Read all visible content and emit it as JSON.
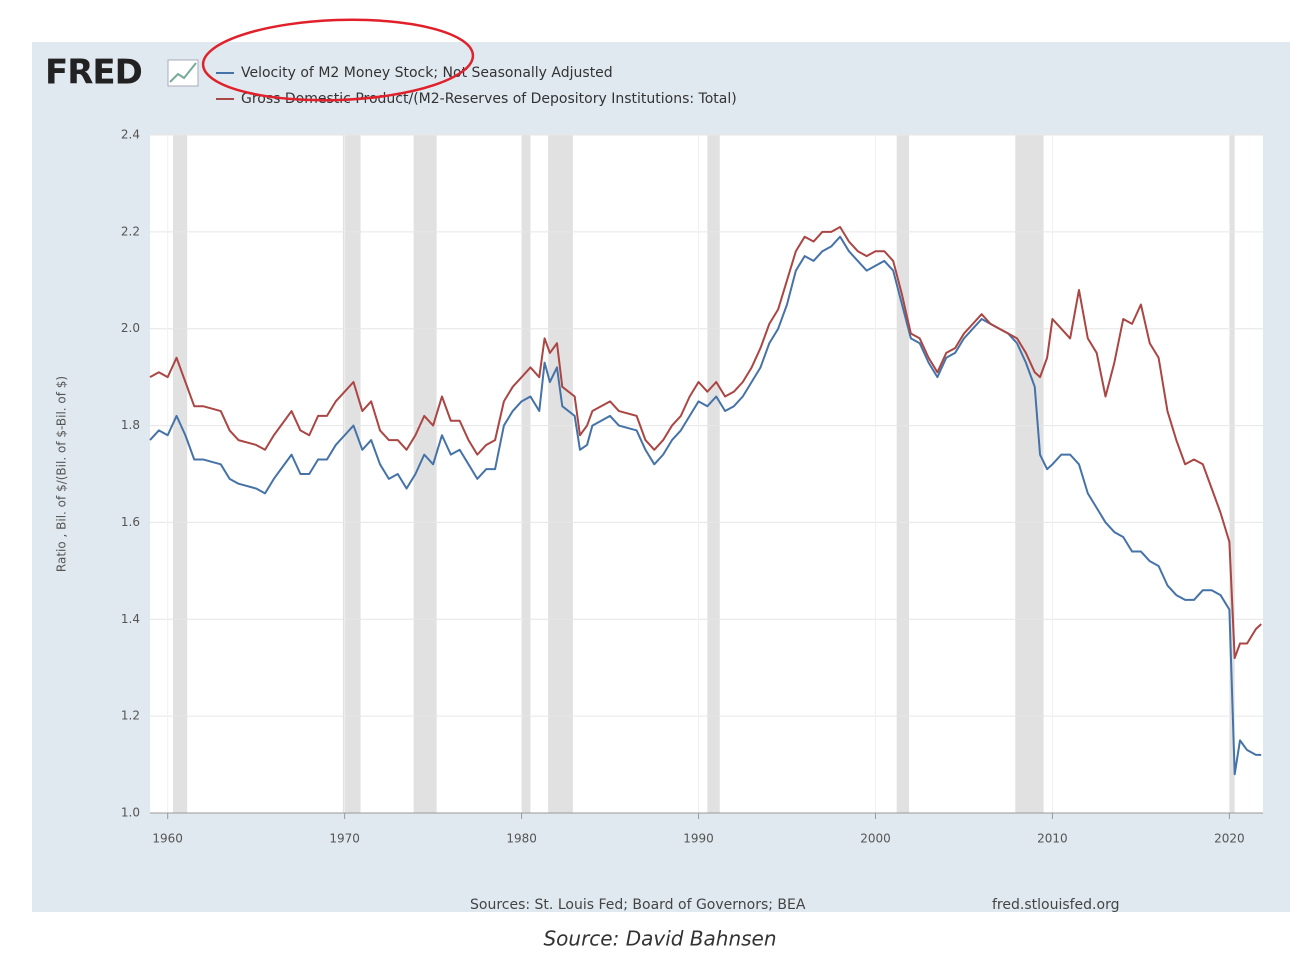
{
  "chart_data": {
    "type": "line",
    "logo": "FRED",
    "ylabel": "Ratio , Bil. of $/(Bil. of $-Bil. of $)",
    "source": "Sources: St. Louis Fed; Board of Governors; BEA",
    "site": "fred.stlouisfed.org",
    "caption": "Source: David Bahnsen",
    "xlim": [
      1959,
      2021.9
    ],
    "xticks": [
      1960,
      1970,
      1980,
      1990,
      2000,
      2010,
      2020
    ],
    "ylim": [
      1.0,
      2.4
    ],
    "yticks": [
      {
        "value": 1.0,
        "label": "1.0"
      },
      1.2,
      1.4,
      1.6,
      1.8,
      {
        "value": 2.0,
        "label": "2.0"
      },
      2.2,
      2.4
    ],
    "grid": true,
    "recessions": [
      [
        1960.3,
        1961.1
      ],
      [
        1969.9,
        1970.9
      ],
      [
        1973.9,
        1975.2
      ],
      [
        1980.0,
        1980.5
      ],
      [
        1981.5,
        1982.9
      ],
      [
        1990.5,
        1991.2
      ],
      [
        2001.2,
        2001.9
      ],
      [
        2007.9,
        2009.5
      ],
      [
        2020.0,
        2020.3
      ]
    ],
    "x": [
      1959,
      1959.5,
      1960,
      1960.5,
      1961,
      1961.5,
      1962,
      1963,
      1963.5,
      1964,
      1965,
      1965.5,
      1966,
      1967,
      1967.5,
      1968,
      1968.5,
      1969,
      1969.5,
      1970,
      1970.5,
      1971,
      1971.5,
      1972,
      1972.5,
      1973,
      1973.5,
      1974,
      1974.5,
      1975,
      1975.5,
      1976,
      1976.5,
      1977,
      1977.5,
      1978,
      1978.5,
      1979,
      1979.5,
      1980,
      1980.5,
      1981,
      1981.3,
      1981.6,
      1982,
      1982.3,
      1983,
      1983.3,
      1983.7,
      1984,
      1985,
      1985.5,
      1986.5,
      1987,
      1987.5,
      1988,
      1988.5,
      1989,
      1989.5,
      1990,
      1990.5,
      1991,
      1991.5,
      1992,
      1992.5,
      1993,
      1993.5,
      1994,
      1994.5,
      1995,
      1995.5,
      1996,
      1996.5,
      1997,
      1997.5,
      1998,
      1998.5,
      1999,
      1999.5,
      2000,
      2000.5,
      2001,
      2001.5,
      2002,
      2002.5,
      2003,
      2003.5,
      2004,
      2004.5,
      2005,
      2005.5,
      2006,
      2006.5,
      2007,
      2007.5,
      2008,
      2008.5,
      2009,
      2009.3,
      2009.7,
      2010,
      2010.5,
      2011,
      2011.5,
      2012,
      2012.5,
      2013,
      2013.5,
      2014,
      2014.5,
      2015,
      2015.5,
      2016,
      2016.5,
      2017,
      2017.5,
      2018,
      2018.5,
      2019,
      2019.5,
      2020,
      2020.3,
      2020.6,
      2021,
      2021.5,
      2021.8
    ],
    "series": [
      {
        "name": "Velocity of M2 Money Stock; Not Seasonally Adjusted",
        "color": "#4572a7",
        "values": [
          1.77,
          1.79,
          1.78,
          1.82,
          1.78,
          1.73,
          1.73,
          1.72,
          1.69,
          1.68,
          1.67,
          1.66,
          1.69,
          1.74,
          1.7,
          1.7,
          1.73,
          1.73,
          1.76,
          1.78,
          1.8,
          1.75,
          1.77,
          1.72,
          1.69,
          1.7,
          1.67,
          1.7,
          1.74,
          1.72,
          1.78,
          1.74,
          1.75,
          1.72,
          1.69,
          1.71,
          1.71,
          1.8,
          1.83,
          1.85,
          1.86,
          1.83,
          1.93,
          1.89,
          1.92,
          1.84,
          1.82,
          1.75,
          1.76,
          1.8,
          1.82,
          1.8,
          1.79,
          1.75,
          1.72,
          1.74,
          1.77,
          1.79,
          1.82,
          1.85,
          1.84,
          1.86,
          1.83,
          1.84,
          1.86,
          1.89,
          1.92,
          1.97,
          2.0,
          2.05,
          2.12,
          2.15,
          2.14,
          2.16,
          2.17,
          2.19,
          2.16,
          2.14,
          2.12,
          2.13,
          2.14,
          2.12,
          2.05,
          1.98,
          1.97,
          1.93,
          1.9,
          1.94,
          1.95,
          1.98,
          2.0,
          2.02,
          2.01,
          2.0,
          1.99,
          1.97,
          1.93,
          1.88,
          1.74,
          1.71,
          1.72,
          1.74,
          1.74,
          1.72,
          1.66,
          1.63,
          1.6,
          1.58,
          1.57,
          1.54,
          1.54,
          1.52,
          1.51,
          1.47,
          1.45,
          1.44,
          1.44,
          1.46,
          1.46,
          1.45,
          1.42,
          1.08,
          1.15,
          1.13,
          1.12,
          1.12
        ]
      },
      {
        "name": "Gross Domestic Product/(M2-Reserves of Depository Institutions: Total)",
        "color": "#aa4643",
        "values": [
          1.9,
          1.91,
          1.9,
          1.94,
          1.89,
          1.84,
          1.84,
          1.83,
          1.79,
          1.77,
          1.76,
          1.75,
          1.78,
          1.83,
          1.79,
          1.78,
          1.82,
          1.82,
          1.85,
          1.87,
          1.89,
          1.83,
          1.85,
          1.79,
          1.77,
          1.77,
          1.75,
          1.78,
          1.82,
          1.8,
          1.86,
          1.81,
          1.81,
          1.77,
          1.74,
          1.76,
          1.77,
          1.85,
          1.88,
          1.9,
          1.92,
          1.9,
          1.98,
          1.95,
          1.97,
          1.88,
          1.86,
          1.78,
          1.8,
          1.83,
          1.85,
          1.83,
          1.82,
          1.77,
          1.75,
          1.77,
          1.8,
          1.82,
          1.86,
          1.89,
          1.87,
          1.89,
          1.86,
          1.87,
          1.89,
          1.92,
          1.96,
          2.01,
          2.04,
          2.1,
          2.16,
          2.19,
          2.18,
          2.2,
          2.2,
          2.21,
          2.18,
          2.16,
          2.15,
          2.16,
          2.16,
          2.14,
          2.07,
          1.99,
          1.98,
          1.94,
          1.91,
          1.95,
          1.96,
          1.99,
          2.01,
          2.03,
          2.01,
          2.0,
          1.99,
          1.98,
          1.95,
          1.91,
          1.9,
          1.94,
          2.02,
          2.0,
          1.98,
          2.08,
          1.98,
          1.95,
          1.86,
          1.93,
          2.02,
          2.01,
          2.05,
          1.97,
          1.94,
          1.83,
          1.77,
          1.72,
          1.73,
          1.72,
          1.67,
          1.62,
          1.56,
          1.32,
          1.35,
          1.35,
          1.38,
          1.39
        ]
      }
    ]
  }
}
